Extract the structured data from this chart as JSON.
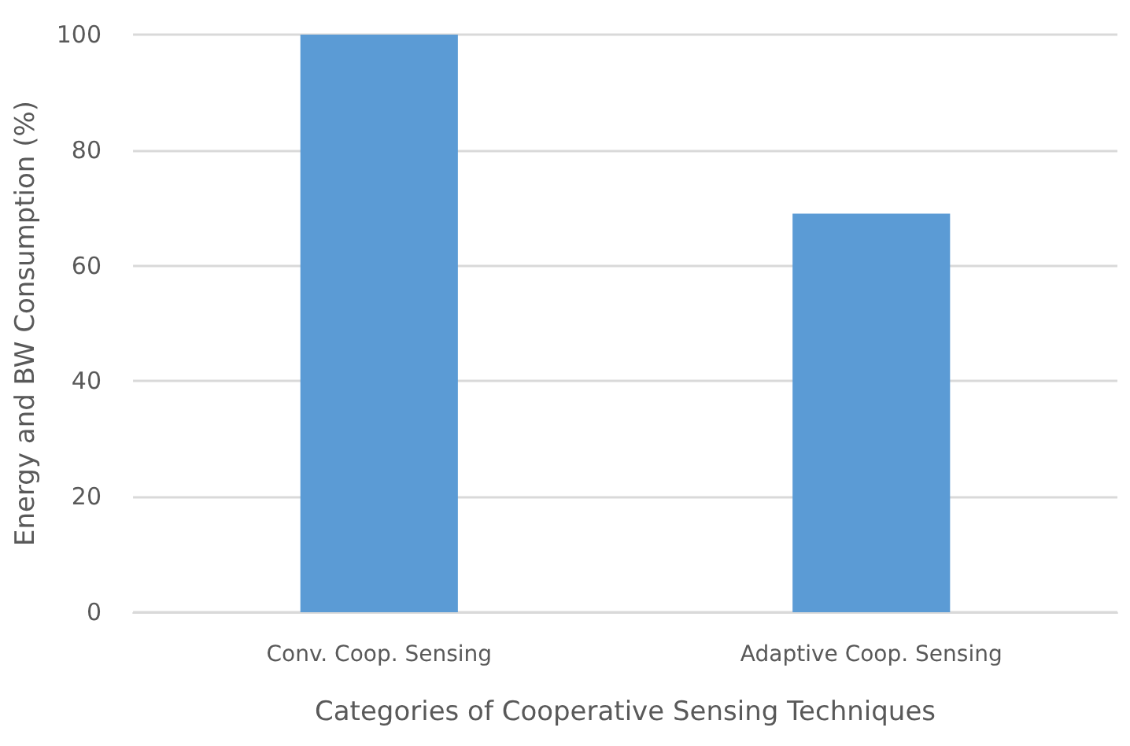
{
  "chart_data": {
    "type": "bar",
    "xlabel": "Categories of Cooperative Sensing Techniques",
    "ylabel": "Energy and BW Consumption (%)",
    "categories": [
      "Conv. Coop. Sensing",
      "Adaptive Coop. Sensing"
    ],
    "values": [
      100,
      69
    ],
    "color": "#5b9bd5",
    "ylim": [
      0,
      100
    ],
    "yticks": [
      0,
      20,
      40,
      60,
      80,
      100
    ],
    "grid": "y"
  }
}
